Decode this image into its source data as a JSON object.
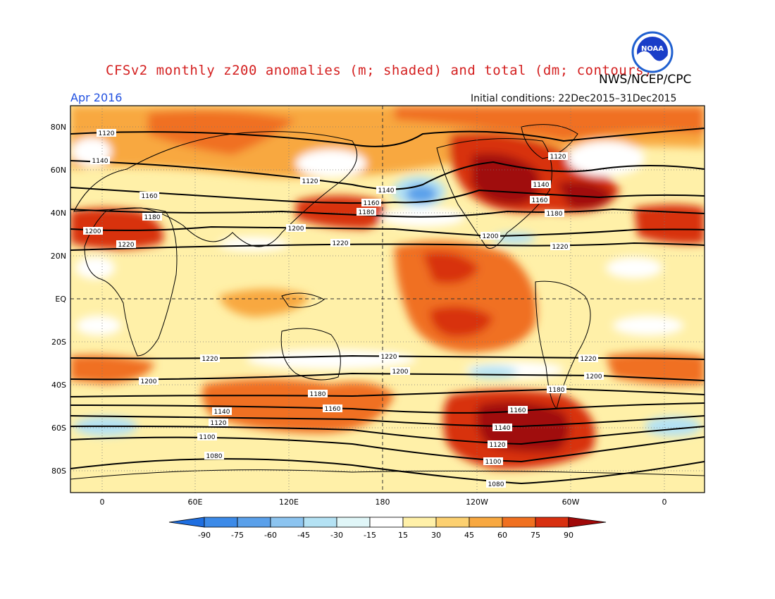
{
  "title": "CFSv2 monthly z200 anomalies (m; shaded) and total (dm; contours)",
  "agency": "NWS/NCEP/CPC",
  "month": "Apr 2016",
  "initial_conditions": "Initial conditions: 22Dec2015–31Dec2015",
  "logo_text": "NOAA",
  "colors": {
    "neg90": "#1e6ee0",
    "neg75": "#3c8ae8",
    "neg60": "#5aa0ea",
    "neg45": "#8cc4f0",
    "neg30": "#b4e2f4",
    "neg15": "#e0f6f8",
    "neutral": "#ffffff",
    "pos15": "#fff0a8",
    "pos30": "#fcd070",
    "pos45": "#f8a840",
    "pos60": "#f07020",
    "pos75": "#d83010",
    "pos90": "#a00808"
  },
  "map": {
    "lat_labels": [
      "80N",
      "60N",
      "40N",
      "20N",
      "EQ",
      "20S",
      "40S",
      "60S",
      "80S"
    ],
    "lon_labels": [
      "0",
      "60E",
      "120E",
      "180",
      "120W",
      "60W",
      "0"
    ],
    "contour_labels": [
      "1080",
      "1100",
      "1120",
      "1140",
      "1160",
      "1180",
      "1200",
      "1220"
    ]
  },
  "colorbar": {
    "labels": [
      "-90",
      "-75",
      "-60",
      "-45",
      "-30",
      "-15",
      "15",
      "30",
      "45",
      "60",
      "75",
      "90"
    ]
  }
}
